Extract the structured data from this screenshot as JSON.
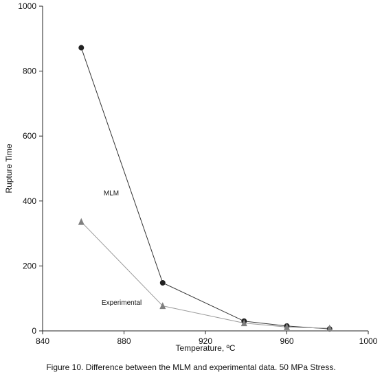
{
  "caption": "Figure 10. Difference between the MLM and experimental data. 50 MPa Stress.",
  "chart_data": {
    "type": "line",
    "title": "",
    "xlabel": "Temperature, ºC",
    "ylabel": "Rupture Time",
    "xlim": [
      840,
      1000
    ],
    "ylim": [
      0,
      1000
    ],
    "xticks": [
      840,
      880,
      920,
      960,
      1000
    ],
    "yticks": [
      0,
      200,
      400,
      600,
      800,
      1000
    ],
    "grid": false,
    "legend": "none",
    "series": [
      {
        "name": "MLM",
        "marker": "circle",
        "color": "#222222",
        "line_color": "#333333",
        "points": [
          [
            859,
            872
          ],
          [
            899,
            148
          ],
          [
            939,
            30
          ],
          [
            960,
            15
          ],
          [
            981,
            6
          ]
        ]
      },
      {
        "name": "Experimental",
        "marker": "triangle",
        "color": "#808080",
        "line_color": "#9a9a9a",
        "points": [
          [
            859,
            336
          ],
          [
            899,
            77
          ],
          [
            939,
            24
          ],
          [
            960,
            12
          ],
          [
            981,
            8
          ]
        ]
      }
    ]
  }
}
